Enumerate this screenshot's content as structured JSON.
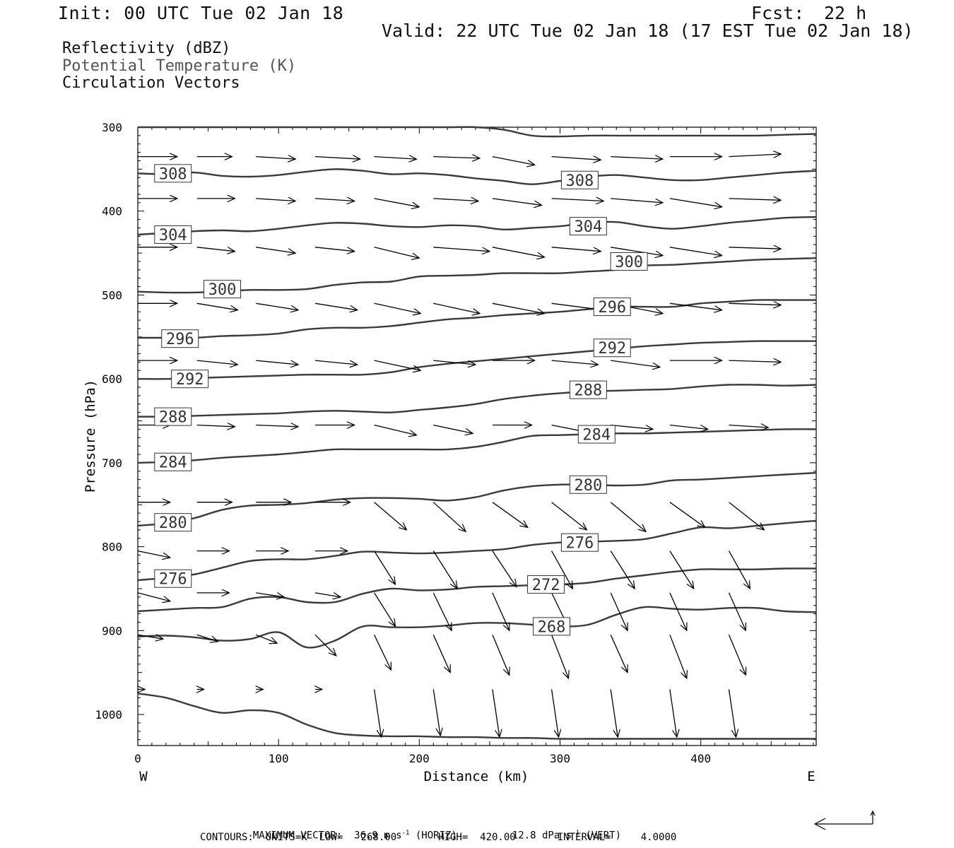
{
  "header": {
    "init": "Init: 00 UTC Tue 02 Jan 18",
    "fcst_label": "Fcst:",
    "fcst_value": "22 h",
    "valid": "Valid: 22 UTC Tue 02 Jan 18 (17 EST Tue 02 Jan 18)",
    "fields": [
      "Reflectivity (dBZ)",
      "Potential Temperature (K)",
      "Circulation Vectors"
    ]
  },
  "footer": {
    "max_vector": "MAXIMUM VECTOR:  36.9 m s",
    "max_vector_exp": "-1",
    "horiz": " (HORIZ)",
    "vert_value": "12.8 dPa s",
    "vert_exp": "-1",
    "vert": " (VERT)",
    "contours": "CONTOURS:  UNITS=K  LOW=   268.00       HIGH=  420.00       INTERVAL=     4.0000"
  },
  "chart_data": {
    "type": "line",
    "xlabel": "Distance (km)",
    "ylabel": "Pressure (hPa)",
    "xlim": [
      0,
      482
    ],
    "ylim": [
      1037,
      300
    ],
    "y_inverted": true,
    "x_ticks": [
      0,
      100,
      200,
      300,
      400
    ],
    "y_ticks": [
      300,
      400,
      500,
      600,
      700,
      800,
      900,
      1000
    ],
    "x_end_labels": {
      "left": "W",
      "right": "E"
    },
    "contour_levels": [
      {
        "value": "308",
        "label_at": [
          [
            25,
            355
          ],
          [
            314,
            363
          ]
        ],
        "x": [
          0,
          20,
          40,
          60,
          80,
          100,
          120,
          140,
          160,
          180,
          200,
          220,
          240,
          260,
          280,
          300,
          320,
          340,
          360,
          380,
          400,
          420,
          440,
          460,
          482
        ],
        "y": [
          355,
          356,
          354,
          358,
          359,
          357,
          353,
          350,
          352,
          356,
          355,
          357,
          361,
          364,
          368,
          364,
          359,
          357,
          360,
          363,
          363,
          360,
          357,
          354,
          352
        ]
      },
      {
        "value": "304",
        "label_at": [
          [
            25,
            428
          ],
          [
            320,
            418
          ]
        ],
        "x": [
          0,
          20,
          40,
          60,
          80,
          100,
          120,
          140,
          160,
          180,
          200,
          220,
          240,
          260,
          280,
          300,
          320,
          340,
          360,
          380,
          400,
          420,
          440,
          460,
          482
        ],
        "y": [
          428,
          426,
          424,
          423,
          424,
          421,
          417,
          414,
          415,
          418,
          419,
          417,
          418,
          422,
          420,
          418,
          414,
          413,
          418,
          421,
          418,
          414,
          411,
          408,
          407
        ]
      },
      {
        "value": "300",
        "label_at": [
          [
            60,
            493
          ],
          [
            349,
            460
          ]
        ],
        "x": [
          0,
          20,
          40,
          60,
          80,
          100,
          120,
          140,
          160,
          180,
          200,
          220,
          240,
          260,
          280,
          300,
          320,
          340,
          360,
          380,
          400,
          420,
          440,
          460,
          482
        ],
        "y": [
          496,
          497,
          497,
          496,
          494,
          494,
          493,
          488,
          485,
          484,
          478,
          477,
          476,
          474,
          474,
          474,
          472,
          470,
          465,
          464,
          462,
          460,
          458,
          457,
          456
        ]
      },
      {
        "value": "296",
        "label_at": [
          [
            30,
            552
          ],
          [
            337,
            514
          ]
        ],
        "x": [
          0,
          20,
          40,
          60,
          80,
          100,
          120,
          140,
          160,
          180,
          200,
          220,
          240,
          260,
          280,
          300,
          320,
          340,
          360,
          380,
          400,
          420,
          440,
          460,
          482
        ],
        "y": [
          551,
          551,
          551,
          549,
          548,
          546,
          541,
          539,
          539,
          537,
          533,
          529,
          527,
          524,
          522,
          520,
          517,
          514,
          514,
          514,
          510,
          508,
          506,
          506,
          506
        ]
      },
      {
        "value": "292",
        "label_at": [
          [
            37,
            600
          ],
          [
            337,
            563
          ]
        ],
        "x": [
          0,
          20,
          40,
          60,
          80,
          100,
          120,
          140,
          160,
          180,
          200,
          220,
          240,
          260,
          280,
          300,
          320,
          340,
          360,
          380,
          400,
          420,
          440,
          460,
          482
        ],
        "y": [
          600,
          600,
          599,
          598,
          597,
          596,
          595,
          595,
          595,
          592,
          586,
          582,
          579,
          576,
          573,
          570,
          567,
          564,
          561,
          559,
          557,
          556,
          555,
          555,
          555
        ]
      },
      {
        "value": "288",
        "label_at": [
          [
            25,
            645
          ],
          [
            320,
            613
          ]
        ],
        "x": [
          0,
          20,
          40,
          60,
          80,
          100,
          120,
          140,
          160,
          180,
          200,
          220,
          240,
          260,
          280,
          300,
          320,
          340,
          360,
          380,
          400,
          420,
          440,
          460,
          482
        ],
        "y": [
          645,
          645,
          644,
          643,
          642,
          641,
          639,
          638,
          639,
          640,
          637,
          634,
          630,
          624,
          620,
          617,
          615,
          614,
          613,
          612,
          609,
          607,
          607,
          608,
          607
        ]
      },
      {
        "value": "284",
        "label_at": [
          [
            25,
            699
          ],
          [
            326,
            666
          ]
        ],
        "x": [
          0,
          20,
          40,
          60,
          80,
          100,
          120,
          140,
          160,
          180,
          200,
          220,
          240,
          260,
          280,
          300,
          320,
          340,
          360,
          380,
          400,
          420,
          440,
          460,
          482
        ],
        "y": [
          700,
          699,
          697,
          694,
          692,
          690,
          687,
          684,
          684,
          684,
          684,
          684,
          681,
          675,
          668,
          667,
          666,
          665,
          665,
          664,
          663,
          662,
          661,
          660,
          660
        ]
      },
      {
        "value": "280",
        "label_at": [
          [
            25,
            771
          ],
          [
            320,
            726
          ]
        ],
        "x": [
          0,
          20,
          40,
          60,
          80,
          100,
          120,
          140,
          160,
          180,
          200,
          220,
          240,
          260,
          280,
          300,
          320,
          340,
          360,
          380,
          400,
          420,
          440,
          460,
          482
        ],
        "y": [
          775,
          772,
          766,
          756,
          751,
          750,
          748,
          744,
          742,
          742,
          743,
          745,
          741,
          733,
          728,
          726,
          726,
          727,
          726,
          721,
          720,
          718,
          716,
          714,
          712
        ]
      },
      {
        "value": "276",
        "label_at": [
          [
            25,
            838
          ],
          [
            314,
            795
          ]
        ],
        "x": [
          0,
          20,
          40,
          60,
          80,
          100,
          120,
          140,
          160,
          180,
          200,
          220,
          240,
          260,
          280,
          300,
          320,
          340,
          360,
          380,
          400,
          420,
          440,
          460,
          482
        ],
        "y": [
          840,
          837,
          833,
          825,
          817,
          815,
          815,
          811,
          806,
          807,
          808,
          807,
          805,
          803,
          798,
          795,
          794,
          793,
          791,
          784,
          777,
          778,
          775,
          772,
          769
        ]
      },
      {
        "value": "272",
        "label_at": [
          [
            290,
            845
          ]
        ],
        "x": [
          0,
          20,
          40,
          60,
          80,
          100,
          120,
          140,
          160,
          180,
          200,
          220,
          240,
          260,
          280,
          300,
          320,
          340,
          360,
          380,
          400,
          420,
          440,
          460,
          482
        ],
        "y": [
          877,
          875,
          873,
          872,
          862,
          860,
          866,
          866,
          856,
          850,
          852,
          851,
          848,
          847,
          846,
          845,
          843,
          838,
          834,
          830,
          827,
          827,
          827,
          826,
          826
        ]
      },
      {
        "value": "268",
        "label_at": [
          [
            294,
            895
          ]
        ],
        "x": [
          0,
          20,
          40,
          60,
          80,
          100,
          120,
          140,
          160,
          180,
          200,
          220,
          240,
          260,
          280,
          300,
          320,
          340,
          360,
          380,
          400,
          420,
          440,
          460,
          482
        ],
        "y": [
          907,
          906,
          908,
          912,
          910,
          902,
          920,
          912,
          895,
          896,
          896,
          894,
          891,
          891,
          893,
          895,
          893,
          881,
          872,
          874,
          875,
          873,
          873,
          877,
          878
        ]
      },
      {
        "value": "",
        "label_at": [],
        "x": [
          0,
          20,
          40,
          60,
          80,
          100,
          120,
          140,
          160,
          180,
          200,
          220,
          240,
          260,
          280,
          300,
          320,
          340,
          360,
          380,
          400,
          420,
          440,
          460,
          482
        ],
        "y": [
          975,
          980,
          990,
          998,
          995,
          998,
          1012,
          1022,
          1025,
          1026,
          1026,
          1027,
          1027,
          1028,
          1028,
          1029,
          1029,
          1029,
          1029,
          1029,
          1029,
          1029,
          1029,
          1029,
          1029
        ]
      },
      {
        "value": "",
        "label_at": [],
        "x": [
          0,
          20,
          40,
          60,
          80,
          100,
          120,
          140,
          160,
          180,
          200,
          220,
          240,
          260,
          280,
          300,
          320,
          340,
          360,
          380,
          400,
          420,
          440,
          460,
          482
        ],
        "y": [
          300,
          300,
          300,
          300,
          300,
          300,
          300,
          300,
          300,
          300,
          300,
          300,
          300,
          303,
          310,
          311,
          310,
          310,
          310,
          310,
          310,
          310,
          310,
          309,
          308
        ]
      }
    ],
    "vector_rows": [
      {
        "p": 335,
        "x0": [
          0,
          42,
          84,
          126,
          168,
          210,
          252,
          294,
          336,
          378,
          420
        ],
        "dx": [
          28,
          25,
          28,
          32,
          30,
          33,
          30,
          35,
          37,
          37,
          37
        ],
        "dp": [
          0,
          0,
          3,
          3,
          3,
          2,
          10,
          4,
          3,
          0,
          -3
        ]
      },
      {
        "p": 385,
        "x0": [
          0,
          42,
          84,
          126,
          168,
          210,
          252,
          294,
          336,
          378,
          420
        ],
        "dx": [
          28,
          27,
          28,
          28,
          32,
          32,
          35,
          37,
          37,
          37,
          37
        ],
        "dp": [
          0,
          0,
          3,
          3,
          10,
          3,
          8,
          3,
          5,
          10,
          2
        ]
      },
      {
        "p": 443,
        "x0": [
          0,
          42,
          84,
          126,
          168,
          210,
          252,
          294,
          336,
          378,
          420
        ],
        "dx": [
          28,
          27,
          28,
          28,
          32,
          40,
          37,
          35,
          37,
          37,
          37
        ],
        "dp": [
          0,
          5,
          7,
          5,
          13,
          5,
          12,
          5,
          10,
          10,
          2
        ]
      },
      {
        "p": 510,
        "x0": [
          0,
          42,
          84,
          126,
          168,
          210,
          252,
          294,
          336,
          378,
          420
        ],
        "dx": [
          28,
          29,
          30,
          30,
          33,
          33,
          37,
          37,
          37,
          37,
          37
        ],
        "dp": [
          0,
          8,
          8,
          8,
          12,
          12,
          12,
          8,
          12,
          8,
          2
        ]
      },
      {
        "p": 578,
        "x0": [
          0,
          42,
          84,
          126,
          168,
          210,
          252,
          294,
          336,
          378,
          420
        ],
        "dx": [
          28,
          29,
          30,
          30,
          33,
          30,
          30,
          33,
          35,
          37,
          37
        ],
        "dp": [
          0,
          5,
          5,
          5,
          12,
          5,
          0,
          5,
          8,
          0,
          2
        ]
      },
      {
        "p": 655,
        "x0": [
          0,
          42,
          84,
          126,
          168,
          210,
          252,
          294,
          336,
          378,
          420
        ],
        "dx": [
          23,
          27,
          30,
          28,
          30,
          28,
          28,
          30,
          30,
          27,
          28
        ],
        "dp": [
          0,
          2,
          2,
          0,
          12,
          10,
          0,
          10,
          5,
          5,
          3
        ]
      },
      {
        "p": 747,
        "x0": [
          0,
          42,
          84,
          126,
          168,
          210,
          252,
          294,
          336,
          378,
          420
        ],
        "dx": [
          23,
          25,
          25,
          25,
          23,
          23,
          25,
          25,
          25,
          25,
          25
        ],
        "dp": [
          0,
          0,
          0,
          0,
          33,
          35,
          30,
          33,
          35,
          30,
          33
        ]
      },
      {
        "p": 805,
        "x0": [
          0,
          42,
          84,
          126,
          168,
          210,
          252,
          294,
          336,
          378,
          420
        ],
        "dx": [
          23,
          23,
          23,
          23,
          15,
          17,
          17,
          15,
          17,
          17,
          15
        ],
        "dp": [
          8,
          0,
          0,
          0,
          40,
          45,
          43,
          45,
          45,
          45,
          45
        ]
      },
      {
        "p": 855,
        "x0": [
          0,
          42,
          84,
          126,
          168,
          210,
          252,
          294,
          336,
          378,
          420
        ],
        "dx": [
          23,
          23,
          20,
          18,
          15,
          13,
          12,
          13,
          12,
          12,
          12
        ],
        "dp": [
          10,
          0,
          5,
          5,
          40,
          45,
          45,
          45,
          45,
          45,
          45
        ]
      },
      {
        "p": 905,
        "x0": [
          0,
          42,
          84,
          126,
          168,
          210,
          252,
          294,
          336,
          378,
          420
        ],
        "dx": [
          18,
          15,
          15,
          15,
          12,
          12,
          12,
          12,
          12,
          12,
          12
        ],
        "dp": [
          5,
          8,
          10,
          25,
          42,
          45,
          48,
          52,
          45,
          52,
          48
        ]
      },
      {
        "p": 970,
        "x0": [
          0,
          42,
          84,
          126,
          168,
          210,
          252,
          294,
          336,
          378,
          420
        ],
        "dx": [
          5,
          5,
          5,
          5,
          5,
          5,
          5,
          5,
          5,
          5,
          5
        ],
        "dp": [
          0,
          0,
          0,
          0,
          57,
          55,
          57,
          57,
          57,
          57,
          57
        ]
      }
    ]
  }
}
